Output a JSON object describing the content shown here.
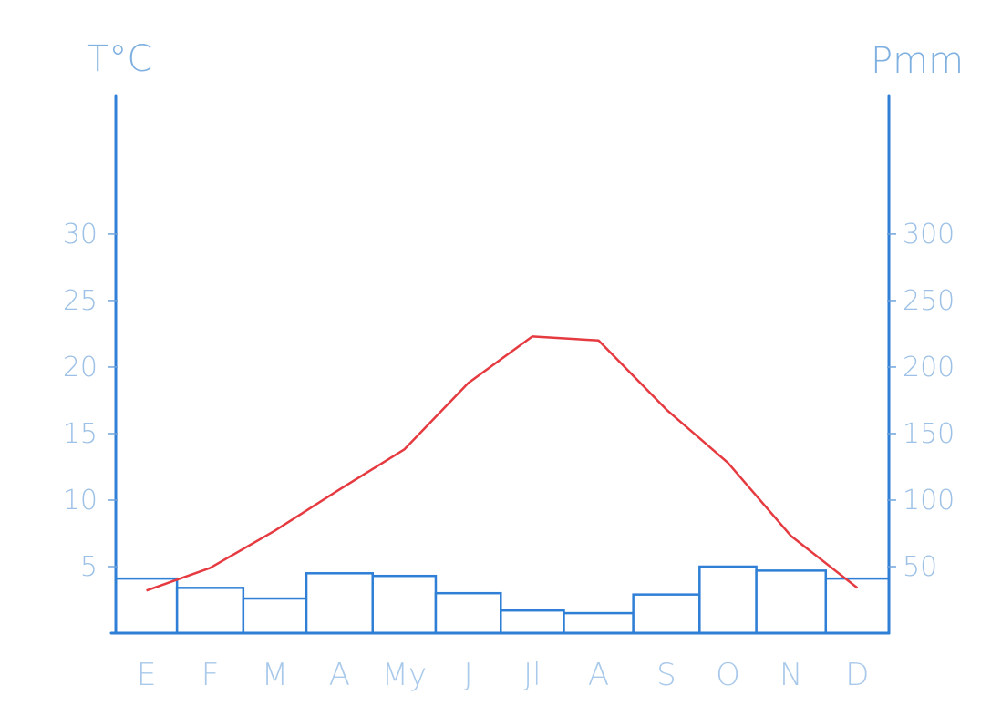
{
  "chart_data": {
    "type": "bar",
    "y_left_label": "T°C",
    "y_right_label": "Pmm",
    "categories": [
      "E",
      "F",
      "M",
      "A",
      "My",
      "J",
      "Jl",
      "A",
      "S",
      "O",
      "N",
      "D"
    ],
    "left_ticks": [
      5,
      10,
      15,
      20,
      25,
      30
    ],
    "right_ticks": [
      50,
      100,
      150,
      200,
      250,
      300
    ],
    "ylim_left": [
      0,
      40
    ],
    "ylim_right": [
      0,
      400
    ],
    "series": [
      {
        "type": "bar",
        "axis": "right",
        "values": [
          41,
          34,
          26,
          45,
          43,
          30,
          17,
          15,
          29,
          50,
          47,
          41
        ]
      },
      {
        "type": "line",
        "axis": "left",
        "values": [
          3.2,
          4.9,
          7.7,
          10.8,
          13.8,
          18.8,
          22.3,
          22.0,
          16.8,
          12.8,
          7.3,
          3.4
        ]
      }
    ],
    "colors": {
      "axis": "#2f7fd6",
      "bars": "#2f7fd6",
      "temperature_line": "#e53a40",
      "labels": "#9cc0e6"
    },
    "grid": false
  }
}
